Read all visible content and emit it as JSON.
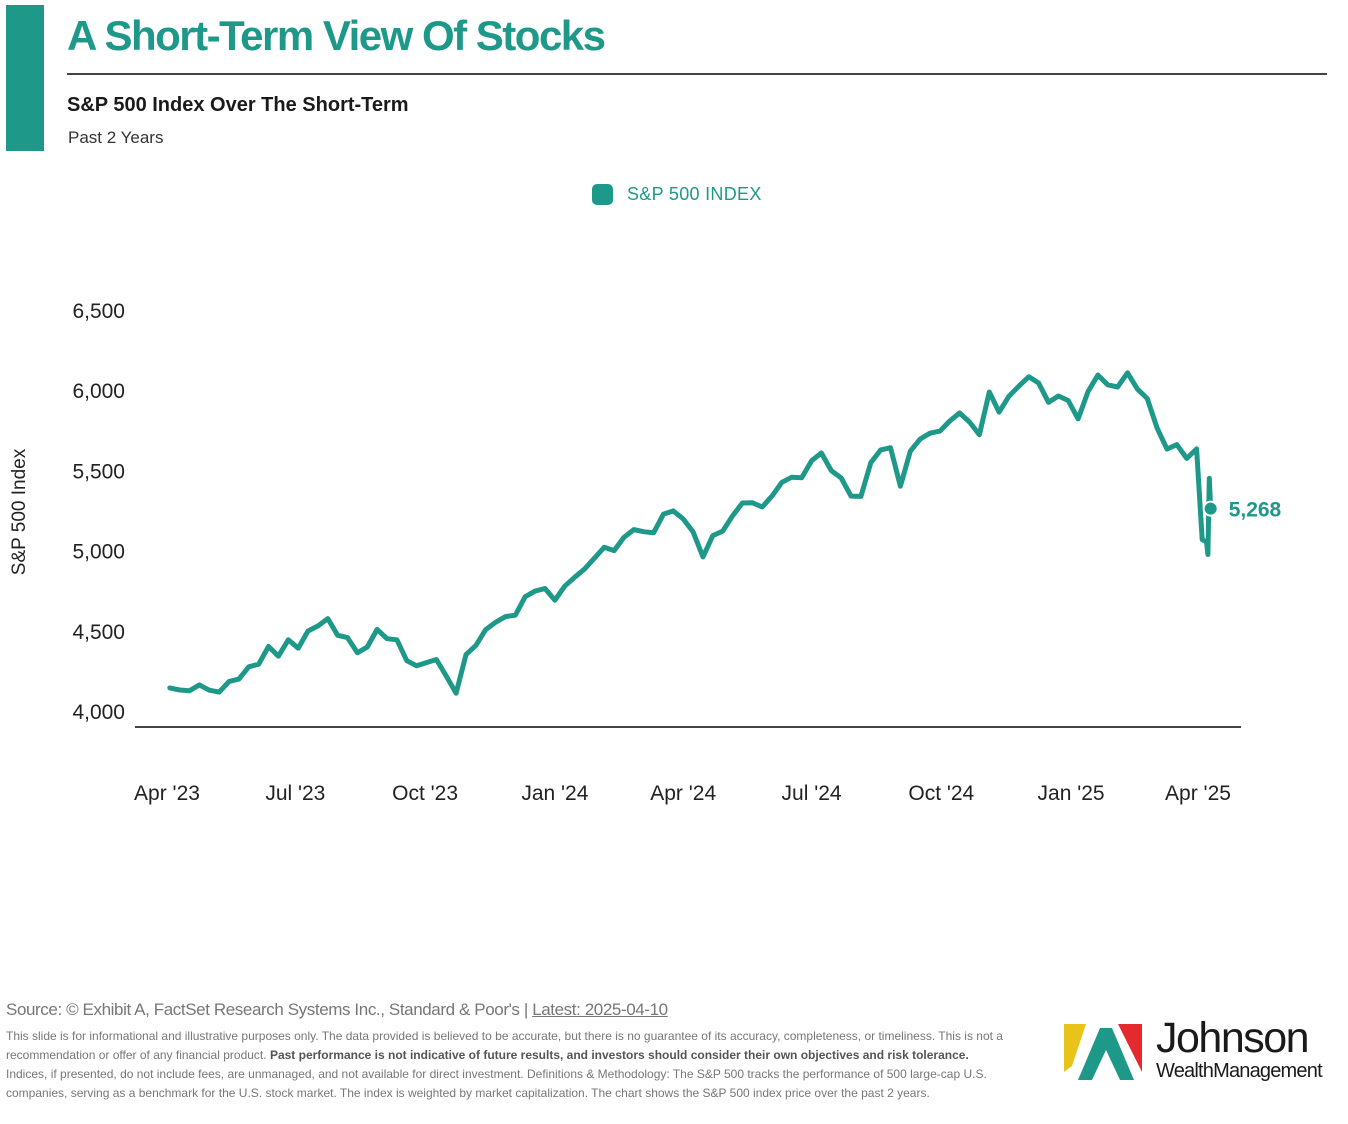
{
  "header": {
    "title": "A Short-Term View Of Stocks",
    "subtitle": "S&P 500 Index Over The Short-Term",
    "period": "Past 2 Years"
  },
  "colors": {
    "accent": "#1e9989",
    "axis": "#444444"
  },
  "chart_data": {
    "type": "line",
    "title": "S&P 500 Index Over The Short-Term",
    "ylabel": "S&P 500 Index",
    "xlabel": "",
    "ylim": [
      4000,
      6500
    ],
    "y_ticks": [
      "4,000",
      "4,500",
      "5,000",
      "5,500",
      "6,000",
      "6,500"
    ],
    "y_tick_values": [
      4000,
      4500,
      5000,
      5500,
      6000,
      6500
    ],
    "x_ticks": [
      "Apr '23",
      "Jul '23",
      "Oct '23",
      "Jan '24",
      "Apr '24",
      "Jul '24",
      "Oct '24",
      "Jan '25",
      "Apr '25"
    ],
    "x_tick_dates": [
      "2023-04-01",
      "2023-07-01",
      "2023-10-01",
      "2024-01-01",
      "2024-04-01",
      "2024-07-01",
      "2024-10-01",
      "2025-01-01",
      "2025-04-01"
    ],
    "legend": {
      "label": "S&P 500 INDEX",
      "position": "top-center"
    },
    "last_value_label": "5,268",
    "series": [
      {
        "name": "S&P 500 INDEX",
        "x": [
          "2023-04-03",
          "2023-04-10",
          "2023-04-17",
          "2023-04-24",
          "2023-05-01",
          "2023-05-08",
          "2023-05-15",
          "2023-05-22",
          "2023-05-29",
          "2023-06-05",
          "2023-06-12",
          "2023-06-19",
          "2023-06-26",
          "2023-07-03",
          "2023-07-10",
          "2023-07-17",
          "2023-07-24",
          "2023-07-31",
          "2023-08-07",
          "2023-08-14",
          "2023-08-21",
          "2023-08-28",
          "2023-09-04",
          "2023-09-11",
          "2023-09-18",
          "2023-09-25",
          "2023-10-02",
          "2023-10-09",
          "2023-10-16",
          "2023-10-23",
          "2023-10-30",
          "2023-11-06",
          "2023-11-13",
          "2023-11-20",
          "2023-11-27",
          "2023-12-04",
          "2023-12-11",
          "2023-12-18",
          "2023-12-25",
          "2024-01-01",
          "2024-01-08",
          "2024-01-15",
          "2024-01-22",
          "2024-01-29",
          "2024-02-05",
          "2024-02-12",
          "2024-02-19",
          "2024-02-26",
          "2024-03-04",
          "2024-03-11",
          "2024-03-18",
          "2024-03-25",
          "2024-04-01",
          "2024-04-08",
          "2024-04-15",
          "2024-04-22",
          "2024-04-29",
          "2024-05-06",
          "2024-05-13",
          "2024-05-20",
          "2024-05-27",
          "2024-06-03",
          "2024-06-10",
          "2024-06-17",
          "2024-06-24",
          "2024-07-01",
          "2024-07-08",
          "2024-07-15",
          "2024-07-22",
          "2024-07-29",
          "2024-08-05",
          "2024-08-12",
          "2024-08-19",
          "2024-08-26",
          "2024-09-02",
          "2024-09-09",
          "2024-09-16",
          "2024-09-23",
          "2024-09-30",
          "2024-10-07",
          "2024-10-14",
          "2024-10-21",
          "2024-10-28",
          "2024-11-04",
          "2024-11-11",
          "2024-11-18",
          "2024-11-25",
          "2024-12-02",
          "2024-12-09",
          "2024-12-16",
          "2024-12-23",
          "2024-12-30",
          "2025-01-06",
          "2025-01-13",
          "2025-01-20",
          "2025-01-27",
          "2025-02-03",
          "2025-02-10",
          "2025-02-17",
          "2025-02-24",
          "2025-03-03",
          "2025-03-10",
          "2025-03-17",
          "2025-03-24",
          "2025-03-31",
          "2025-04-04",
          "2025-04-07",
          "2025-04-08",
          "2025-04-09",
          "2025-04-10"
        ],
        "values": [
          4150,
          4137,
          4133,
          4169,
          4136,
          4124,
          4191,
          4205,
          4282,
          4298,
          4409,
          4348,
          4450,
          4398,
          4505,
          4536,
          4582,
          4478,
          4464,
          4369,
          4405,
          4515,
          4457,
          4450,
          4320,
          4288,
          4308,
          4327,
          4224,
          4117,
          4358,
          4415,
          4514,
          4559,
          4595,
          4604,
          4719,
          4754,
          4770,
          4697,
          4784,
          4840,
          4891,
          4959,
          5027,
          5006,
          5089,
          5137,
          5124,
          5117,
          5234,
          5254,
          5204,
          5123,
          4967,
          5100,
          5128,
          5223,
          5303,
          5305,
          5278,
          5347,
          5432,
          5464,
          5460,
          5567,
          5615,
          5505,
          5459,
          5346,
          5344,
          5554,
          5634,
          5648,
          5408,
          5626,
          5702,
          5738,
          5751,
          5815,
          5864,
          5808,
          5729,
          5995,
          5870,
          5969,
          6032,
          6090,
          6051,
          5930,
          5970,
          5942,
          5827,
          5997,
          6101,
          6040,
          6026,
          6115,
          6013,
          5955,
          5770,
          5639,
          5667,
          5581,
          5640,
          5074,
          5062,
          4982,
          5457,
          5268
        ]
      }
    ]
  },
  "footer": {
    "source": "Source: © Exhibit A, FactSet Research Systems Inc., Standard & Poor's | ",
    "latest": "Latest: 2025-04-10",
    "disclaimer_1": "This slide is for informational and illustrative purposes only. The data provided is believed to be accurate, but there is no guarantee of its accuracy, completeness, or timeliness. This is not a recommendation or offer of any financial product. ",
    "disclaimer_bold": "Past performance is not indicative of future results, and investors should consider their own objectives and risk tolerance.",
    "disclaimer_2": " Indices, if presented, do not include fees, are unmanaged, and not available for direct investment. Definitions & Methodology: The S&P 500 tracks the performance of 500 large-cap U.S. companies, serving as a benchmark for the U.S. stock market. The index is weighted by market capitalization. The chart shows the S&P 500 index price over the past 2 years."
  },
  "logo": {
    "name": "Johnson",
    "sub": "WealthManagement"
  }
}
